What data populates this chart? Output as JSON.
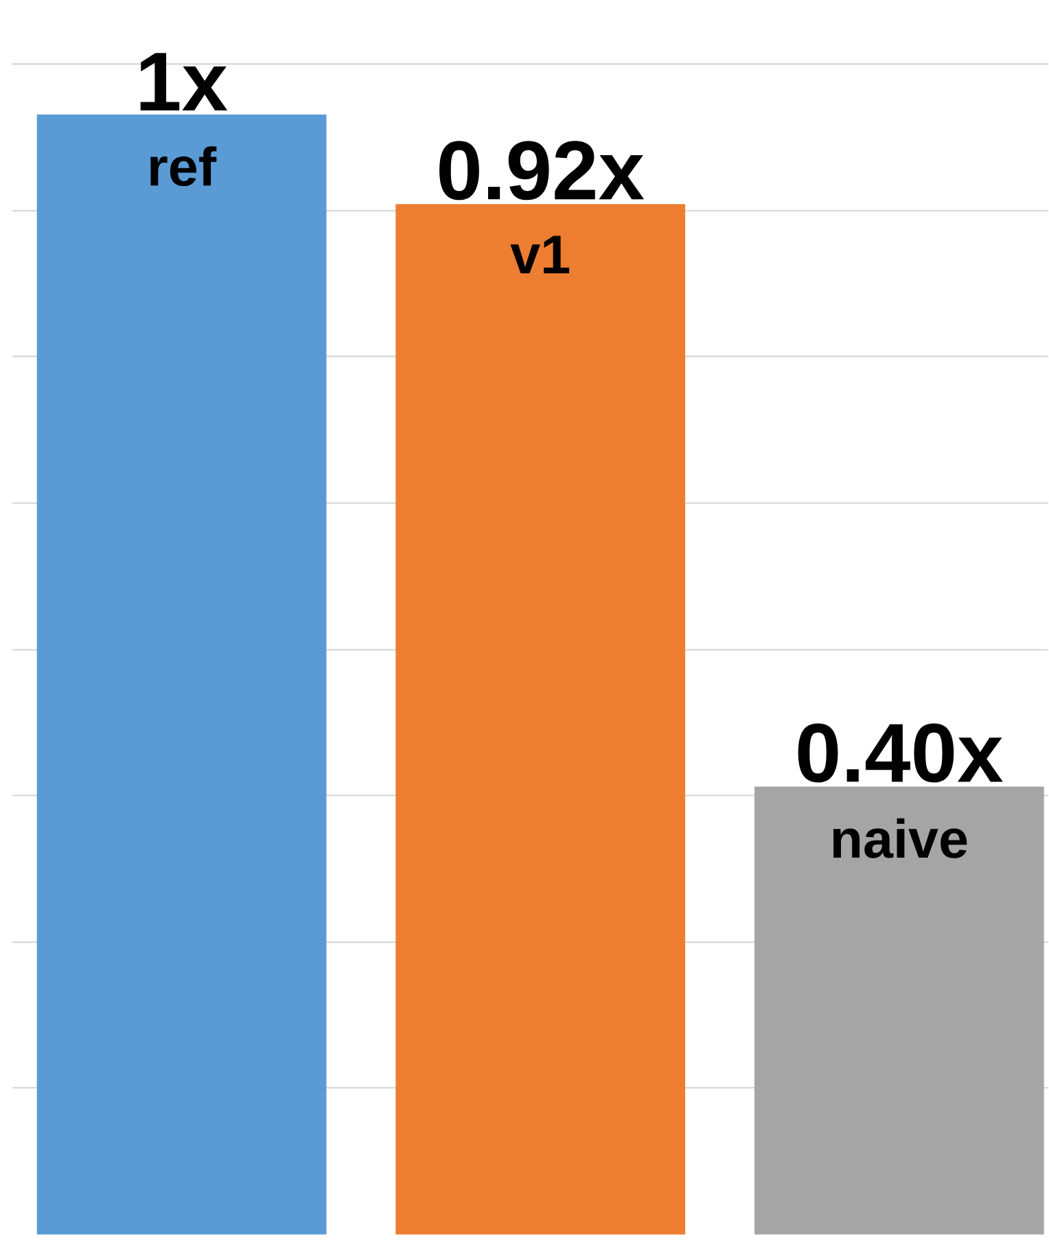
{
  "chart_data": {
    "type": "bar",
    "categories": [
      "ref",
      "v1",
      "naive"
    ],
    "values": [
      1,
      0.92,
      0.4
    ],
    "value_labels": [
      "1x",
      "0.92x",
      "0.40x"
    ],
    "colors": [
      "#5b9bd5",
      "#ed7d31",
      "#a5a5a5"
    ],
    "yticks": [
      {
        "value": 0.131,
        "label": null
      },
      {
        "value": 0.261,
        "label": null
      },
      {
        "value": 0.392,
        "label": null
      },
      {
        "value": 0.522,
        "label": null
      },
      {
        "value": 0.653,
        "label": null
      },
      {
        "value": 0.784,
        "label": null
      },
      {
        "value": 0.914,
        "label": null
      },
      {
        "value": 1.045,
        "label": null
      }
    ],
    "grid": "y",
    "tick_labels": false
  }
}
